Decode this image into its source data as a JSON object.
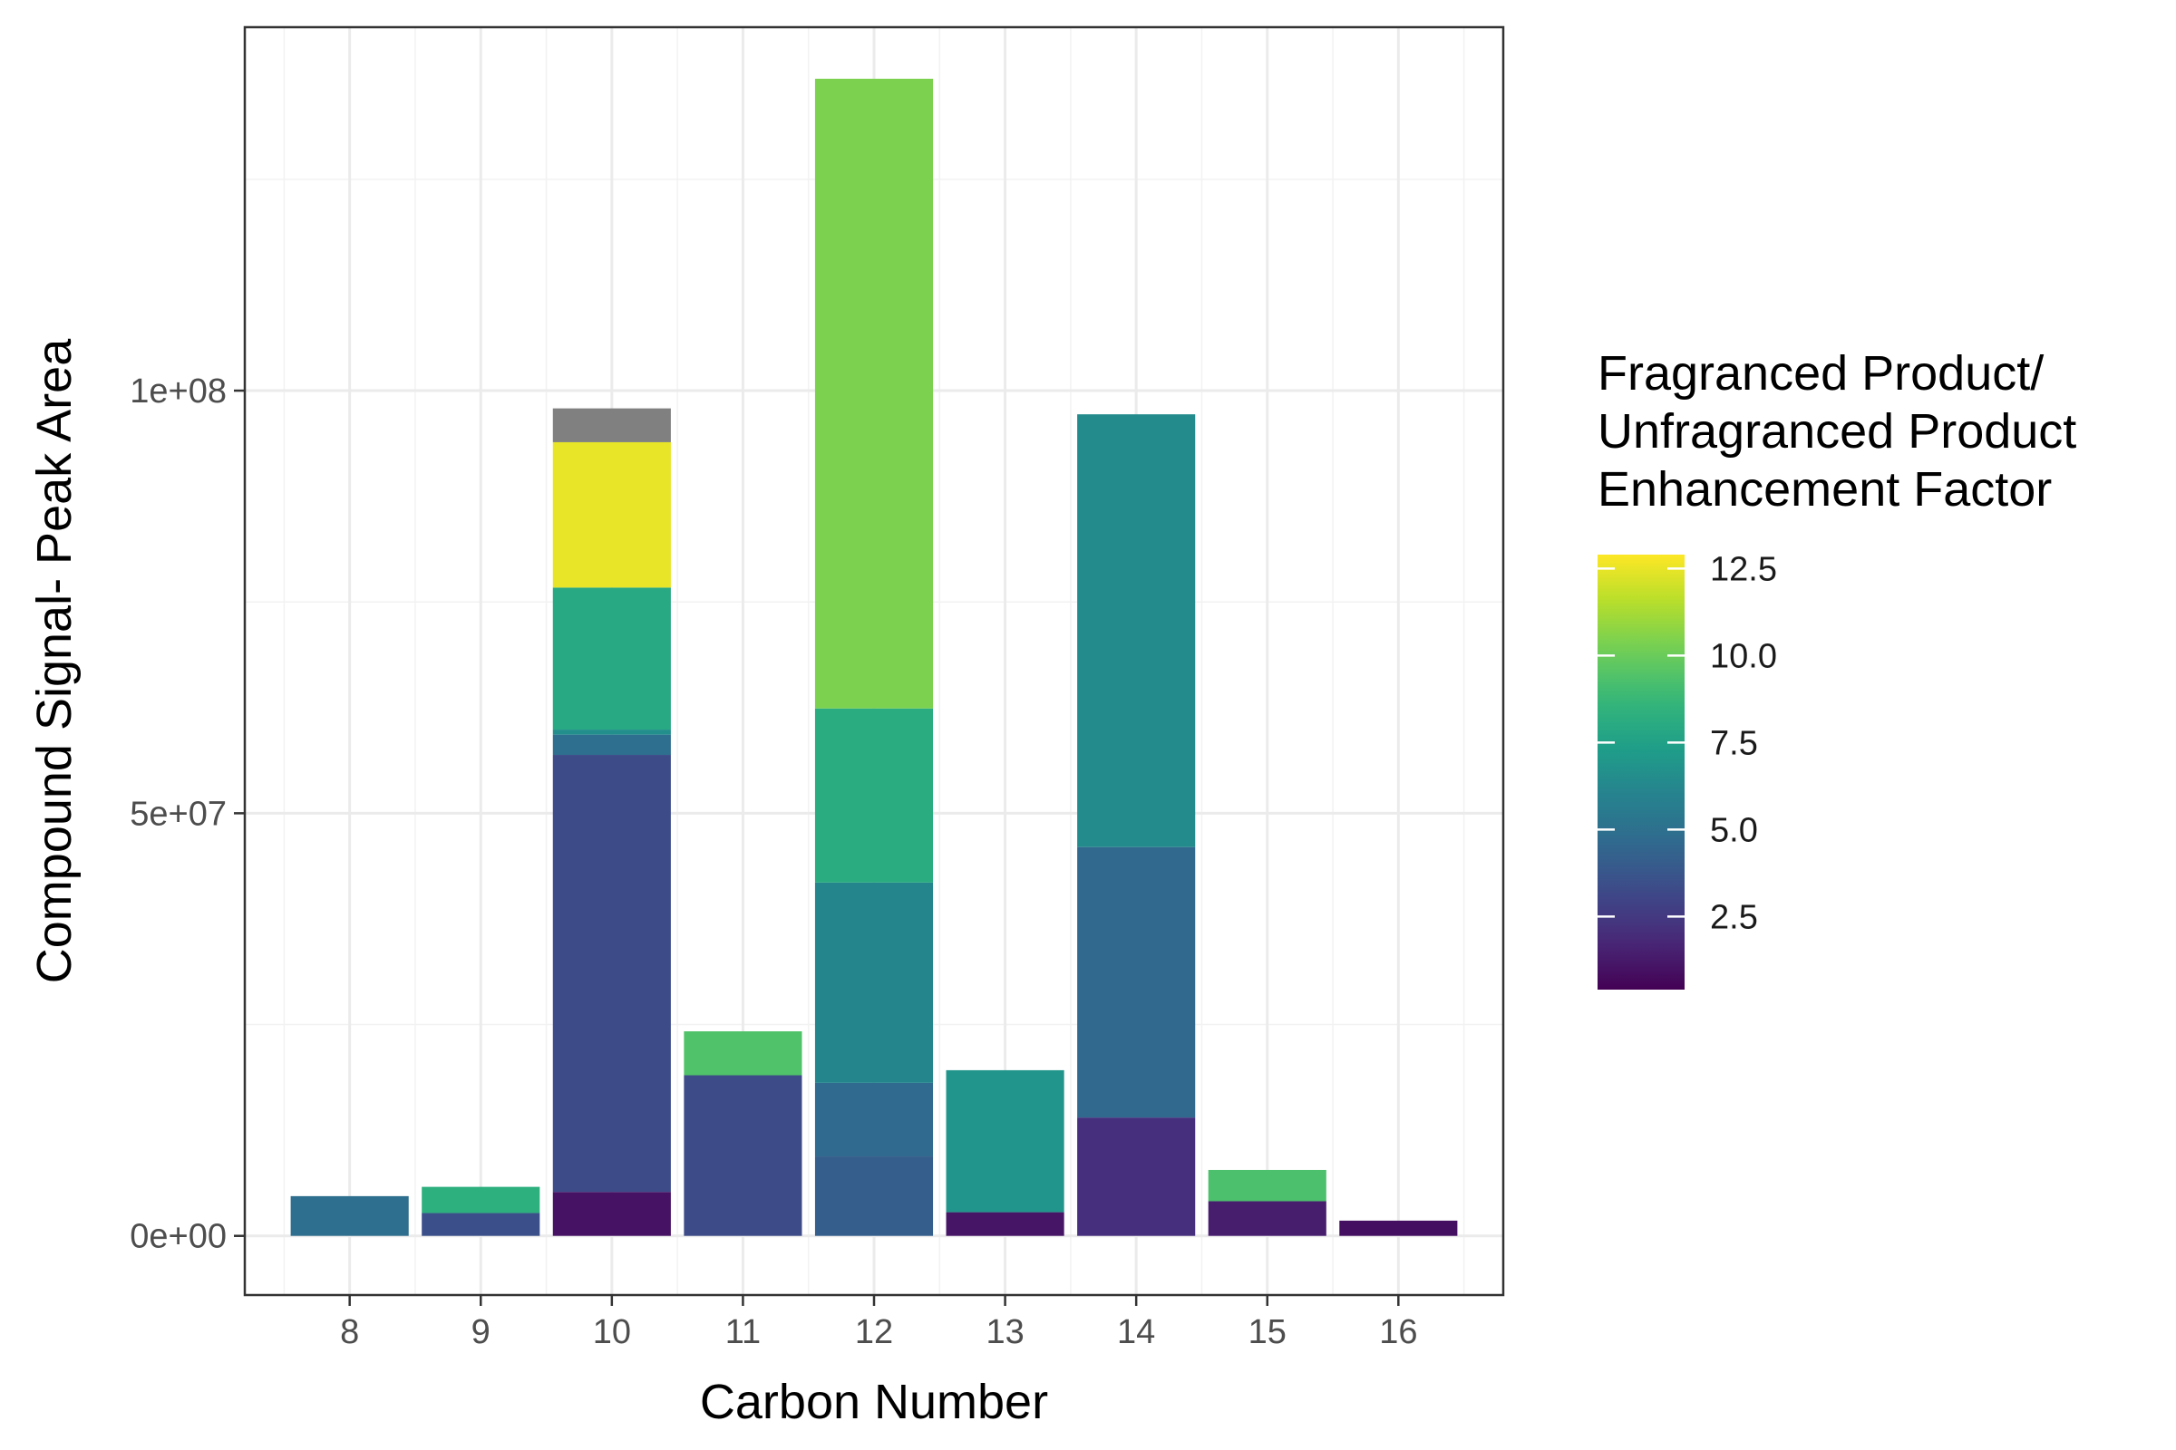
{
  "chart_data": {
    "type": "bar",
    "stacked": true,
    "xlabel": "Carbon Number",
    "ylabel": "Compound Signal- Peak Area",
    "categories": [
      "8",
      "9",
      "10",
      "11",
      "12",
      "13",
      "14",
      "15",
      "16"
    ],
    "ylim": [
      -7000000,
      143000000
    ],
    "yticks": [
      0,
      50000000,
      100000000
    ],
    "ytick_labels": [
      "0e+00",
      "5e+07",
      "1e+08"
    ],
    "grid": true,
    "legend": {
      "title": [
        "Fragranced Product/",
        "Unfragranced Product",
        "Enhancement Factor"
      ],
      "type": "colorbar",
      "placement": "right",
      "range": [
        0.4,
        12.9
      ],
      "ticks": [
        2.5,
        5.0,
        7.5,
        10.0,
        12.5
      ],
      "tick_labels": [
        "2.5",
        "5.0",
        "7.5",
        "10.0",
        "12.5"
      ],
      "colormap": "viridis",
      "na_color": "#808080"
    },
    "stacks": [
      {
        "x": "8",
        "segments": [
          {
            "value": 4700000,
            "factor": 4.9
          }
        ]
      },
      {
        "x": "9",
        "segments": [
          {
            "value": 2700000,
            "factor": 3.5
          },
          {
            "value": 3100000,
            "factor": 8.3
          }
        ]
      },
      {
        "x": "10",
        "segments": [
          {
            "value": 5200000,
            "factor": 1.0
          },
          {
            "value": 51700000,
            "factor": 3.3
          },
          {
            "value": 2400000,
            "factor": 4.9
          },
          {
            "value": 600000,
            "factor": 6.6
          },
          {
            "value": 16800000,
            "factor": 7.9
          },
          {
            "value": 17200000,
            "factor": 12.5
          },
          {
            "value": 4000000,
            "factor": null
          }
        ]
      },
      {
        "x": "11",
        "segments": [
          {
            "value": 19000000,
            "factor": 3.3
          },
          {
            "value": 5200000,
            "factor": 9.4
          }
        ]
      },
      {
        "x": "12",
        "segments": [
          {
            "value": 9400000,
            "factor": 4.1
          },
          {
            "value": 8700000,
            "factor": 4.7
          },
          {
            "value": 23700000,
            "factor": 6.1
          },
          {
            "value": 20600000,
            "factor": 8.1
          },
          {
            "value": 74500000,
            "factor": 10.4
          }
        ]
      },
      {
        "x": "13",
        "segments": [
          {
            "value": 2800000,
            "factor": 1.1
          },
          {
            "value": 16800000,
            "factor": 6.9
          }
        ]
      },
      {
        "x": "14",
        "segments": [
          {
            "value": 14000000,
            "factor": 2.1
          },
          {
            "value": 32000000,
            "factor": 4.6
          },
          {
            "value": 51200000,
            "factor": 6.4
          }
        ]
      },
      {
        "x": "15",
        "segments": [
          {
            "value": 4100000,
            "factor": 1.4
          },
          {
            "value": 3700000,
            "factor": 9.3
          }
        ]
      },
      {
        "x": "16",
        "segments": [
          {
            "value": 1800000,
            "factor": 0.9
          }
        ]
      }
    ]
  }
}
